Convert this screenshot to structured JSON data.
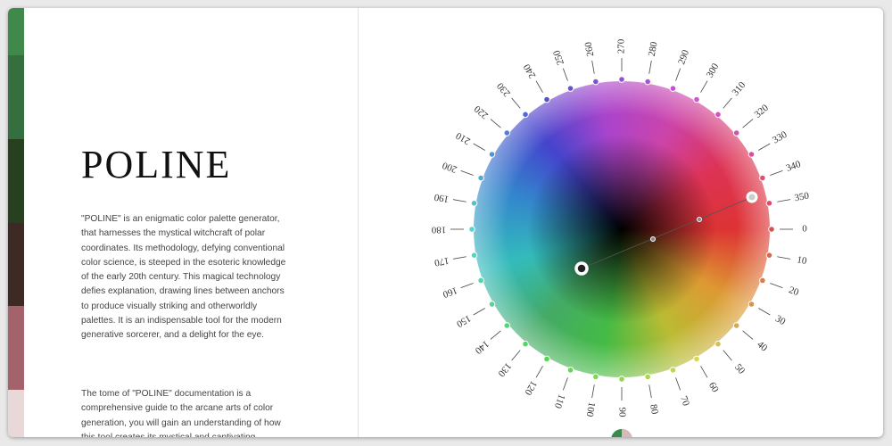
{
  "header": {
    "title": "POLINE"
  },
  "intro": [
    "\"POLINE\" is an enigmatic color palette generator, that harnesses the mystical witchcraft of polar coordinates. Its methodology, defying conventional color science, is steeped in the esoteric knowledge of the early 20th century. This magical technology defies explanation, drawing lines between anchors to produce visually striking and otherworldly palettes. It is an indispensable tool for the modern generative sorcerer, and a delight for the eye.",
    "The tome of \"POLINE\" documentation is a comprehensive guide to the arcane arts of color generation, you will gain an understanding of how this tool creates its mystical and captivating"
  ],
  "swatches": [
    "#3f8a4a",
    "#356f3f",
    "#27401f",
    "#3e2a24",
    "#a4626a",
    "#e8d8d8"
  ],
  "wheel": {
    "degrees": [
      0,
      10,
      20,
      30,
      40,
      50,
      60,
      70,
      80,
      90,
      100,
      110,
      120,
      130,
      140,
      150,
      160,
      170,
      180,
      190,
      200,
      210,
      220,
      230,
      240,
      250,
      260,
      270,
      280,
      290,
      300,
      310,
      320,
      330,
      340,
      350
    ]
  }
}
